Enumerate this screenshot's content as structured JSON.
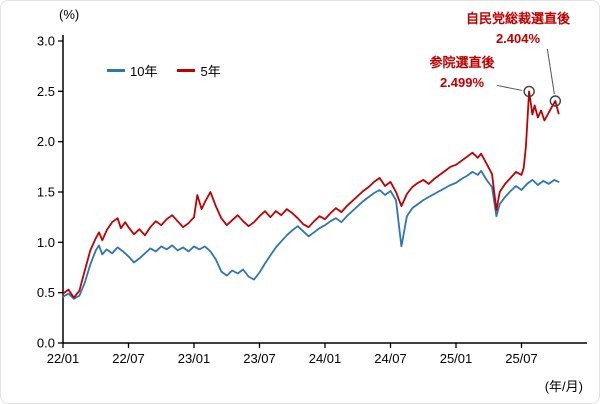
{
  "chart_data": {
    "type": "line",
    "title": "",
    "ylabel": "(%)",
    "xlabel": "(年/月)",
    "x_unit": "months since 2022-01 (22/01 = 0)",
    "xlim": [
      0,
      48
    ],
    "ylim": [
      0.0,
      3.0
    ],
    "grid": false,
    "legend_position": "inside-top-left",
    "y_ticks": [
      0.0,
      0.5,
      1.0,
      1.5,
      2.0,
      2.5,
      3.0
    ],
    "y_tick_labels": [
      "0.0",
      "0.5",
      "1.0",
      "1.5",
      "2.0",
      "2.5",
      "3.0"
    ],
    "x_ticks": [
      0,
      6,
      12,
      18,
      24,
      30,
      36,
      42
    ],
    "x_tick_labels": [
      "22/01",
      "22/07",
      "23/01",
      "23/07",
      "24/01",
      "24/07",
      "25/01",
      "25/07"
    ],
    "colors": {
      "series_10y": "#2e75b6",
      "series_5y": "#c00000",
      "annotation": "#c00000",
      "axis": "#000000",
      "marker_circle": "#404040",
      "connector": "#555555"
    },
    "series": [
      {
        "name": "10年",
        "color": "#2e75b6",
        "points": [
          [
            0,
            0.46
          ],
          [
            0.5,
            0.49
          ],
          [
            1,
            0.44
          ],
          [
            1.5,
            0.47
          ],
          [
            2,
            0.6
          ],
          [
            2.5,
            0.78
          ],
          [
            3,
            0.92
          ],
          [
            3.3,
            0.97
          ],
          [
            3.6,
            0.88
          ],
          [
            4,
            0.93
          ],
          [
            4.5,
            0.89
          ],
          [
            5,
            0.95
          ],
          [
            5.5,
            0.91
          ],
          [
            6,
            0.86
          ],
          [
            6.5,
            0.8
          ],
          [
            7,
            0.84
          ],
          [
            7.5,
            0.89
          ],
          [
            8,
            0.94
          ],
          [
            8.5,
            0.91
          ],
          [
            9,
            0.96
          ],
          [
            9.5,
            0.93
          ],
          [
            10,
            0.97
          ],
          [
            10.5,
            0.92
          ],
          [
            11,
            0.95
          ],
          [
            11.5,
            0.91
          ],
          [
            12,
            0.96
          ],
          [
            12.5,
            0.93
          ],
          [
            13,
            0.96
          ],
          [
            13.5,
            0.91
          ],
          [
            14,
            0.83
          ],
          [
            14.5,
            0.71
          ],
          [
            15,
            0.67
          ],
          [
            15.5,
            0.72
          ],
          [
            16,
            0.69
          ],
          [
            16.5,
            0.73
          ],
          [
            17,
            0.66
          ],
          [
            17.5,
            0.63
          ],
          [
            18,
            0.7
          ],
          [
            18.5,
            0.79
          ],
          [
            19,
            0.87
          ],
          [
            19.5,
            0.95
          ],
          [
            20,
            1.01
          ],
          [
            20.5,
            1.07
          ],
          [
            21,
            1.12
          ],
          [
            21.5,
            1.16
          ],
          [
            22,
            1.11
          ],
          [
            22.5,
            1.06
          ],
          [
            23,
            1.1
          ],
          [
            23.5,
            1.14
          ],
          [
            24,
            1.17
          ],
          [
            24.5,
            1.21
          ],
          [
            25,
            1.24
          ],
          [
            25.5,
            1.2
          ],
          [
            26,
            1.26
          ],
          [
            26.5,
            1.31
          ],
          [
            27,
            1.36
          ],
          [
            27.5,
            1.41
          ],
          [
            28,
            1.45
          ],
          [
            28.5,
            1.49
          ],
          [
            29,
            1.52
          ],
          [
            29.5,
            1.47
          ],
          [
            30,
            1.51
          ],
          [
            30.5,
            1.42
          ],
          [
            31,
            0.96
          ],
          [
            31.5,
            1.26
          ],
          [
            32,
            1.34
          ],
          [
            32.5,
            1.38
          ],
          [
            33,
            1.42
          ],
          [
            33.5,
            1.45
          ],
          [
            34,
            1.48
          ],
          [
            34.5,
            1.51
          ],
          [
            35,
            1.54
          ],
          [
            35.5,
            1.57
          ],
          [
            36,
            1.59
          ],
          [
            36.5,
            1.63
          ],
          [
            37,
            1.66
          ],
          [
            37.5,
            1.7
          ],
          [
            38,
            1.67
          ],
          [
            38.3,
            1.71
          ],
          [
            38.8,
            1.62
          ],
          [
            39.3,
            1.55
          ],
          [
            39.7,
            1.26
          ],
          [
            40,
            1.38
          ],
          [
            40.5,
            1.45
          ],
          [
            41,
            1.51
          ],
          [
            41.5,
            1.56
          ],
          [
            42,
            1.52
          ],
          [
            42.5,
            1.58
          ],
          [
            43,
            1.62
          ],
          [
            43.5,
            1.57
          ],
          [
            44,
            1.61
          ],
          [
            44.5,
            1.58
          ],
          [
            45,
            1.62
          ],
          [
            45.4,
            1.6
          ]
        ]
      },
      {
        "name": "5年",
        "color": "#c00000",
        "points": [
          [
            0,
            0.49
          ],
          [
            0.5,
            0.53
          ],
          [
            1,
            0.45
          ],
          [
            1.5,
            0.52
          ],
          [
            2,
            0.72
          ],
          [
            2.5,
            0.92
          ],
          [
            3,
            1.04
          ],
          [
            3.3,
            1.1
          ],
          [
            3.6,
            1.02
          ],
          [
            4,
            1.12
          ],
          [
            4.5,
            1.2
          ],
          [
            5,
            1.24
          ],
          [
            5.3,
            1.14
          ],
          [
            5.7,
            1.2
          ],
          [
            6,
            1.15
          ],
          [
            6.5,
            1.08
          ],
          [
            7,
            1.13
          ],
          [
            7.5,
            1.07
          ],
          [
            8,
            1.15
          ],
          [
            8.5,
            1.21
          ],
          [
            9,
            1.17
          ],
          [
            9.5,
            1.23
          ],
          [
            10,
            1.27
          ],
          [
            10.5,
            1.21
          ],
          [
            11,
            1.15
          ],
          [
            11.5,
            1.19
          ],
          [
            12,
            1.25
          ],
          [
            12.3,
            1.47
          ],
          [
            12.7,
            1.33
          ],
          [
            13,
            1.4
          ],
          [
            13.5,
            1.5
          ],
          [
            14,
            1.36
          ],
          [
            14.5,
            1.24
          ],
          [
            15,
            1.17
          ],
          [
            15.5,
            1.22
          ],
          [
            16,
            1.27
          ],
          [
            16.5,
            1.21
          ],
          [
            17,
            1.16
          ],
          [
            17.5,
            1.2
          ],
          [
            18,
            1.26
          ],
          [
            18.5,
            1.31
          ],
          [
            19,
            1.25
          ],
          [
            19.5,
            1.31
          ],
          [
            20,
            1.27
          ],
          [
            20.5,
            1.33
          ],
          [
            21,
            1.29
          ],
          [
            21.5,
            1.24
          ],
          [
            22,
            1.18
          ],
          [
            22.5,
            1.15
          ],
          [
            23,
            1.21
          ],
          [
            23.5,
            1.26
          ],
          [
            24,
            1.23
          ],
          [
            24.5,
            1.29
          ],
          [
            25,
            1.34
          ],
          [
            25.5,
            1.3
          ],
          [
            26,
            1.36
          ],
          [
            26.5,
            1.41
          ],
          [
            27,
            1.46
          ],
          [
            27.5,
            1.51
          ],
          [
            28,
            1.55
          ],
          [
            28.5,
            1.6
          ],
          [
            29,
            1.64
          ],
          [
            29.5,
            1.56
          ],
          [
            30,
            1.6
          ],
          [
            30.5,
            1.5
          ],
          [
            31,
            1.36
          ],
          [
            31.5,
            1.48
          ],
          [
            32,
            1.55
          ],
          [
            32.5,
            1.59
          ],
          [
            33,
            1.62
          ],
          [
            33.5,
            1.58
          ],
          [
            34,
            1.63
          ],
          [
            34.5,
            1.67
          ],
          [
            35,
            1.71
          ],
          [
            35.5,
            1.75
          ],
          [
            36,
            1.77
          ],
          [
            36.5,
            1.81
          ],
          [
            37,
            1.85
          ],
          [
            37.5,
            1.89
          ],
          [
            38,
            1.84
          ],
          [
            38.3,
            1.88
          ],
          [
            38.8,
            1.78
          ],
          [
            39.3,
            1.68
          ],
          [
            39.7,
            1.32
          ],
          [
            40,
            1.5
          ],
          [
            40.5,
            1.58
          ],
          [
            41,
            1.64
          ],
          [
            41.5,
            1.7
          ],
          [
            42,
            1.67
          ],
          [
            42.2,
            1.74
          ],
          [
            42.4,
            1.95
          ],
          [
            42.7,
            2.499
          ],
          [
            43,
            2.27
          ],
          [
            43.2,
            2.36
          ],
          [
            43.5,
            2.24
          ],
          [
            43.8,
            2.31
          ],
          [
            44.1,
            2.21
          ],
          [
            44.4,
            2.27
          ],
          [
            44.7,
            2.33
          ],
          [
            45.1,
            2.404
          ],
          [
            45.4,
            2.28
          ]
        ]
      }
    ],
    "markers": [
      {
        "x": 42.7,
        "y": 2.499,
        "label": "参院選直後",
        "value": "2.499%"
      },
      {
        "x": 45.1,
        "y": 2.404,
        "label": "自民党総裁選直後",
        "value": "2.404%"
      }
    ]
  }
}
